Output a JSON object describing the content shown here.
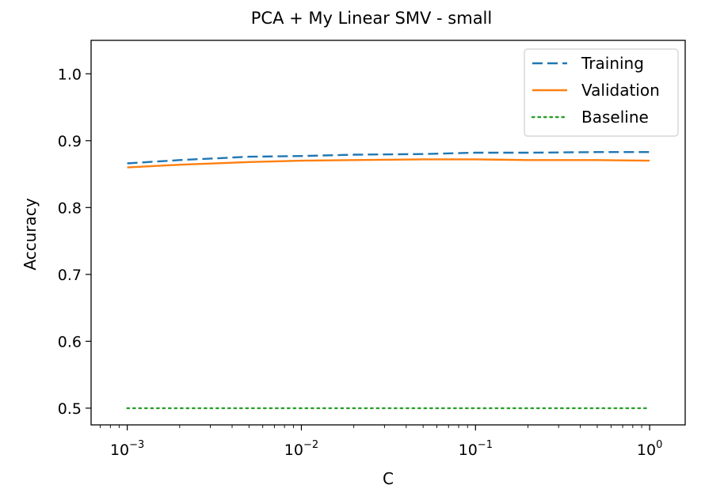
{
  "chart_data": {
    "type": "line",
    "title": "PCA + My Linear SMV - small",
    "xlabel": "C",
    "ylabel": "Accuracy",
    "xscale": "log",
    "xlim": [
      0.00062,
      1.6
    ],
    "ylim": [
      0.475,
      1.05
    ],
    "x_ticks": [
      {
        "base": "10",
        "exp": "−3",
        "value": 0.001
      },
      {
        "base": "10",
        "exp": "−2",
        "value": 0.01
      },
      {
        "base": "10",
        "exp": "−1",
        "value": 0.1
      },
      {
        "base": "10",
        "exp": "0",
        "value": 1
      }
    ],
    "y_ticks": [
      "0.5",
      "0.6",
      "0.7",
      "0.8",
      "0.9",
      "1.0"
    ],
    "grid": false,
    "legend_position": "top-right",
    "series": [
      {
        "name": "Training",
        "color": "#1f77b4",
        "style": "dashed",
        "x": [
          0.001,
          0.002,
          0.005,
          0.01,
          0.02,
          0.05,
          0.1,
          0.2,
          0.5,
          1
        ],
        "y": [
          0.866,
          0.871,
          0.876,
          0.877,
          0.879,
          0.88,
          0.882,
          0.882,
          0.883,
          0.883
        ]
      },
      {
        "name": "Validation",
        "color": "#ff7f0e",
        "style": "solid",
        "x": [
          0.001,
          0.002,
          0.005,
          0.01,
          0.02,
          0.05,
          0.1,
          0.2,
          0.5,
          1
        ],
        "y": [
          0.86,
          0.864,
          0.868,
          0.87,
          0.871,
          0.872,
          0.872,
          0.871,
          0.871,
          0.87
        ]
      },
      {
        "name": "Baseline",
        "color": "#2ca02c",
        "style": "dotted",
        "x": [
          0.001,
          1
        ],
        "y": [
          0.5,
          0.5
        ]
      }
    ]
  }
}
